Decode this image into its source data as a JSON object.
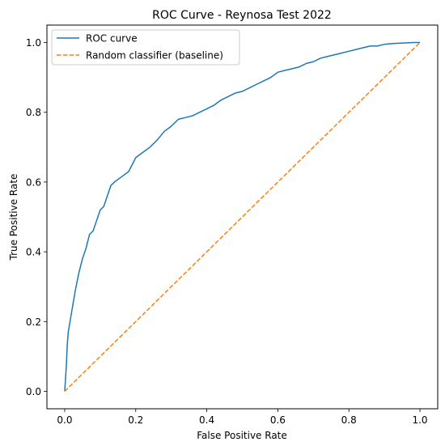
{
  "chart_data": {
    "type": "line",
    "title": "ROC Curve - Reynosa Test 2022",
    "xlabel": "False Positive Rate",
    "ylabel": "True Positive Rate",
    "xlim": [
      -0.05,
      1.05
    ],
    "ylim": [
      -0.05,
      1.05
    ],
    "xticks": [
      0.0,
      0.2,
      0.4,
      0.6,
      0.8,
      1.0
    ],
    "xtick_labels": [
      "0.0",
      "0.2",
      "0.4",
      "0.6",
      "0.8",
      "1.0"
    ],
    "yticks": [
      0.0,
      0.2,
      0.4,
      0.6,
      0.8,
      1.0
    ],
    "ytick_labels": [
      "0.0",
      "0.2",
      "0.4",
      "0.6",
      "0.8",
      "1.0"
    ],
    "grid": false,
    "legend_position": "top-left",
    "series": [
      {
        "name": "ROC curve",
        "color": "#1f77b4",
        "style": "solid",
        "x": [
          0.0,
          0.002,
          0.005,
          0.007,
          0.01,
          0.02,
          0.03,
          0.04,
          0.05,
          0.06,
          0.07,
          0.08,
          0.09,
          0.1,
          0.11,
          0.12,
          0.13,
          0.14,
          0.16,
          0.18,
          0.2,
          0.22,
          0.24,
          0.26,
          0.28,
          0.3,
          0.32,
          0.34,
          0.36,
          0.38,
          0.4,
          0.42,
          0.44,
          0.46,
          0.48,
          0.5,
          0.52,
          0.54,
          0.56,
          0.58,
          0.6,
          0.62,
          0.64,
          0.66,
          0.68,
          0.7,
          0.72,
          0.74,
          0.76,
          0.78,
          0.8,
          0.82,
          0.84,
          0.86,
          0.88,
          0.9,
          0.92,
          0.94,
          0.96,
          0.98,
          1.0
        ],
        "y": [
          0.0,
          0.03,
          0.08,
          0.13,
          0.17,
          0.23,
          0.29,
          0.34,
          0.38,
          0.41,
          0.45,
          0.46,
          0.49,
          0.52,
          0.53,
          0.56,
          0.59,
          0.6,
          0.615,
          0.63,
          0.67,
          0.685,
          0.7,
          0.72,
          0.745,
          0.76,
          0.78,
          0.785,
          0.79,
          0.8,
          0.81,
          0.82,
          0.835,
          0.845,
          0.855,
          0.86,
          0.87,
          0.88,
          0.89,
          0.9,
          0.915,
          0.92,
          0.925,
          0.93,
          0.94,
          0.945,
          0.955,
          0.96,
          0.965,
          0.97,
          0.975,
          0.98,
          0.985,
          0.99,
          0.99,
          0.995,
          0.997,
          0.998,
          0.999,
          1.0,
          1.0
        ]
      },
      {
        "name": "Random classifier (baseline)",
        "color": "#ff7f0e",
        "style": "dashed",
        "x": [
          0.0,
          1.0
        ],
        "y": [
          0.0,
          1.0
        ]
      }
    ]
  }
}
